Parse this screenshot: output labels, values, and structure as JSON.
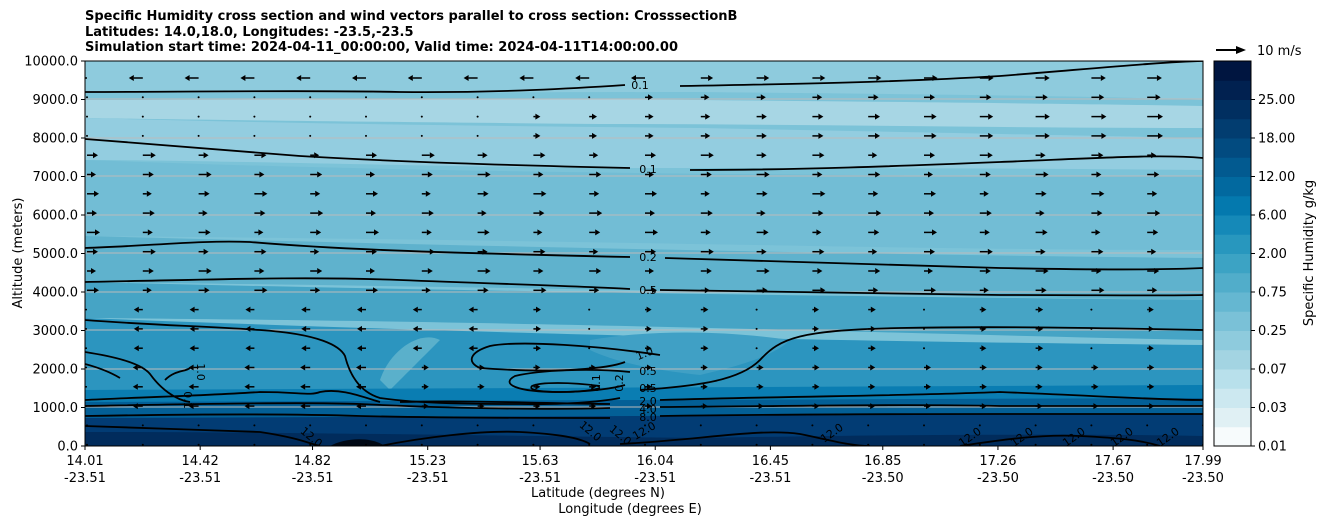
{
  "chart_data": {
    "type": "contour",
    "title": {
      "line1": "Specific Humidity cross section and wind vectors parallel to cross section: CrosssectionB",
      "line2": "Latitudes: 14.0,18.0, Longitudes: -23.5,-23.5",
      "line3": "Simulation start time: 2024-04-11_00:00:00, Valid time: 2024-04-11T14:00:00.00"
    },
    "ylabel": "Altitude (meters)",
    "xlabel_lat": "Latitude (degrees N)",
    "xlabel_lon": "Longitude (degrees E)",
    "ylim": [
      0,
      10000
    ],
    "y_ticks": [
      "0.0",
      "1000.0",
      "2000.0",
      "3000.0",
      "4000.0",
      "5000.0",
      "6000.0",
      "7000.0",
      "8000.0",
      "9000.0",
      "10000.0"
    ],
    "x_ticks": [
      {
        "lat": "14.01",
        "lon": "-23.51"
      },
      {
        "lat": "14.42",
        "lon": "-23.51"
      },
      {
        "lat": "14.82",
        "lon": "-23.51"
      },
      {
        "lat": "15.23",
        "lon": "-23.51"
      },
      {
        "lat": "15.63",
        "lon": "-23.51"
      },
      {
        "lat": "16.04",
        "lon": "-23.51"
      },
      {
        "lat": "16.45",
        "lon": "-23.51"
      },
      {
        "lat": "16.85",
        "lon": "-23.50"
      },
      {
        "lat": "17.26",
        "lon": "-23.50"
      },
      {
        "lat": "17.67",
        "lon": "-23.50"
      },
      {
        "lat": "17.99",
        "lon": "-23.50"
      }
    ],
    "colorbar": {
      "label": "Specific Humidity g/kg",
      "tick_labels": [
        "0.01",
        "0.03",
        "0.07",
        "0.25",
        "0.75",
        "2.00",
        "6.00",
        "12.00",
        "18.00",
        "25.00"
      ],
      "colors": [
        "#f7fbfc",
        "#e0f0f4",
        "#cce8f0",
        "#b8e0eb",
        "#a3d4e2",
        "#8ecbdd",
        "#7ac1d7",
        "#65b7d1",
        "#51adca",
        "#3ca3c4",
        "#2897be",
        "#1589b8",
        "#0479ae",
        "#02699f",
        "#025a90",
        "#024b80",
        "#023d70",
        "#012f60",
        "#012150",
        "#001540"
      ]
    },
    "quiver_key": {
      "label": "10 m/s",
      "speed": 10
    },
    "contour_labels": [
      "0.1",
      "0.1",
      "0.2",
      "0.5",
      "1.0",
      "0.5",
      "0.5",
      "0.1",
      "0.2",
      "2.0",
      "4.0",
      "8.0",
      "0.1",
      "1.0",
      "12.0",
      "12.0",
      "12.0",
      "12.0",
      "12.0",
      "12.0",
      "12.0",
      "12.0",
      "12.0",
      "12.0"
    ],
    "grid": true
  }
}
